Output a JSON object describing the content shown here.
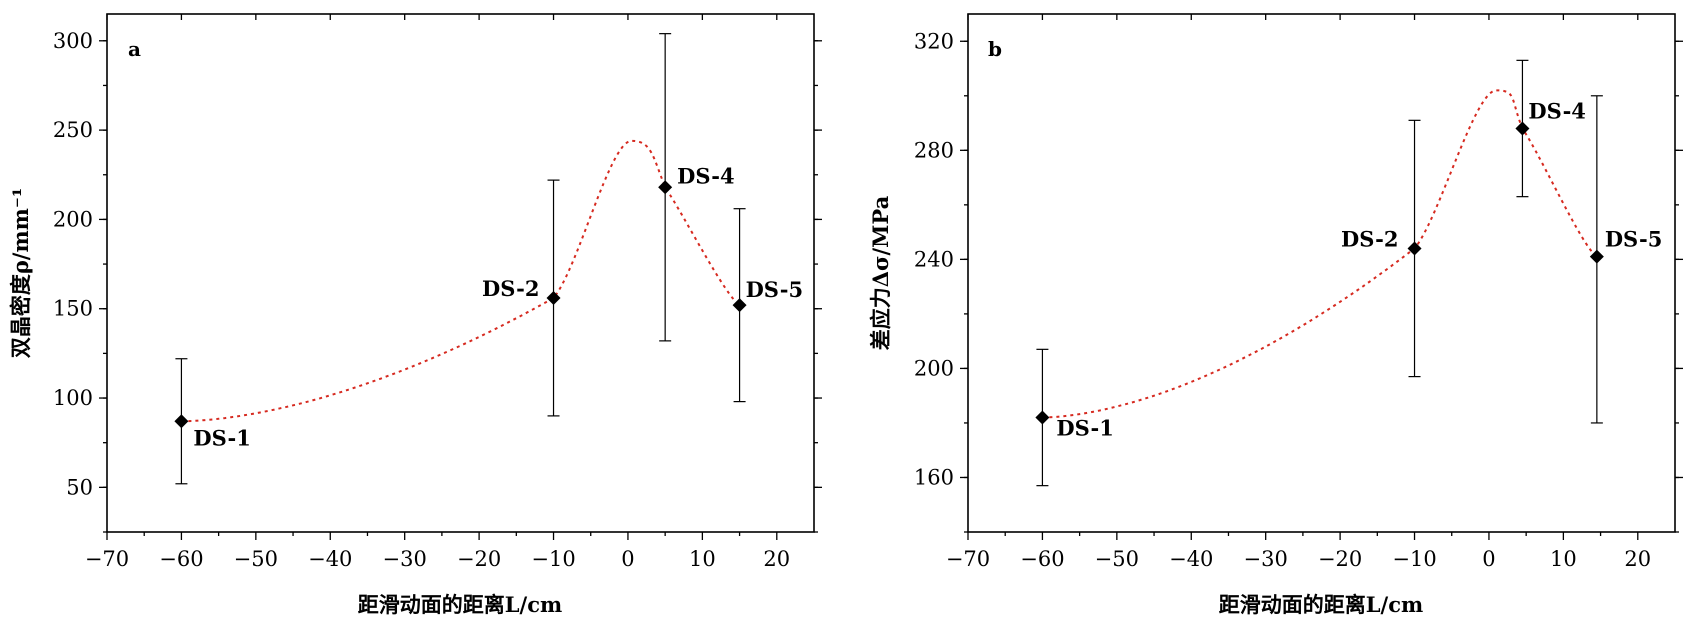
{
  "chart_data": [
    {
      "type": "scatter",
      "panel_label": "a",
      "xlabel": "距滑动面的距离L/cm",
      "ylabel": "双晶密度ρ/mm⁻¹",
      "xlim": [
        -70,
        25
      ],
      "ylim": [
        25,
        315
      ],
      "xticks": [
        -70,
        -60,
        -50,
        -40,
        -30,
        -20,
        -10,
        0,
        10,
        20
      ],
      "xtick_labels": [
        "−70",
        "−60",
        "−50",
        "−40",
        "−30",
        "−20",
        "−10",
        "0",
        "10",
        "20"
      ],
      "yticks": [
        50,
        100,
        150,
        200,
        250,
        300
      ],
      "ytick_labels": [
        "50",
        "100",
        "150",
        "200",
        "250",
        "300"
      ],
      "points": [
        {
          "label": "DS-1",
          "x": -60,
          "y": 87,
          "err_low": 52,
          "err_high": 122
        },
        {
          "label": "DS-2",
          "x": -10,
          "y": 156,
          "err_low": 90,
          "err_high": 222
        },
        {
          "label": "DS-4",
          "x": 5,
          "y": 218,
          "err_low": 132,
          "err_high": 304
        },
        {
          "label": "DS-5",
          "x": 15,
          "y": 152,
          "err_low": 98,
          "err_high": 206
        }
      ],
      "fit_curve": {
        "peak_x": 0.5,
        "peak_y": 244,
        "color": "#d62a20",
        "style": "dotted"
      }
    },
    {
      "type": "scatter",
      "panel_label": "b",
      "xlabel": "距滑动面的距离L/cm",
      "ylabel": "差应力Δσ/MPa",
      "xlim": [
        -70,
        25
      ],
      "ylim": [
        140,
        330
      ],
      "xticks": [
        -70,
        -60,
        -50,
        -40,
        -30,
        -20,
        -10,
        0,
        10,
        20
      ],
      "xtick_labels": [
        "−70",
        "−60",
        "−50",
        "−40",
        "−30",
        "−20",
        "−10",
        "0",
        "10",
        "20"
      ],
      "yticks": [
        160,
        200,
        240,
        280,
        320
      ],
      "ytick_labels": [
        "160",
        "200",
        "240",
        "280",
        "320"
      ],
      "points": [
        {
          "label": "DS-1",
          "x": -60,
          "y": 182,
          "err_low": 157,
          "err_high": 207
        },
        {
          "label": "DS-2",
          "x": -10,
          "y": 244,
          "err_low": 197,
          "err_high": 291
        },
        {
          "label": "DS-4",
          "x": 4.5,
          "y": 288,
          "err_low": 263,
          "err_high": 313
        },
        {
          "label": "DS-5",
          "x": 14.5,
          "y": 241,
          "err_low": 180,
          "err_high": 300
        }
      ],
      "fit_curve": {
        "peak_x": 1,
        "peak_y": 302,
        "color": "#d62a20",
        "style": "dotted"
      }
    }
  ]
}
